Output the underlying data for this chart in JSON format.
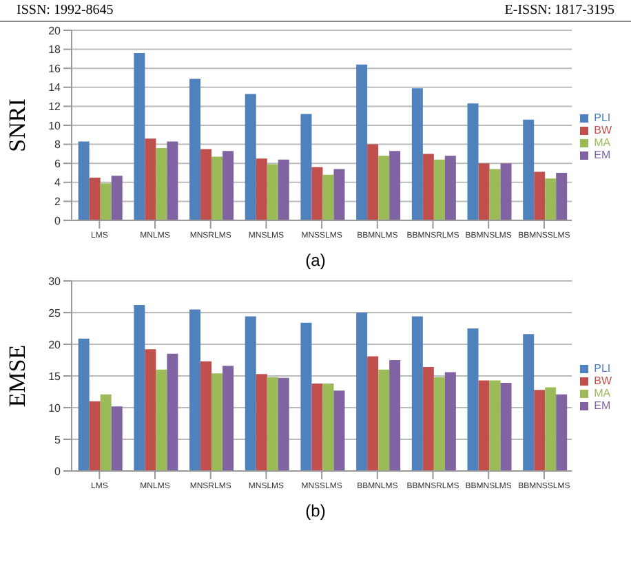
{
  "chart_data": [
    {
      "type": "bar",
      "ylabel": "SNRI",
      "annotations": [
        "ISSN: 1992-8645",
        "E-ISSN: 1817-3195",
        "(a)"
      ],
      "categories": [
        "LMS",
        "MNLMS",
        "MNSRLMS",
        "MNSLMS",
        "MNSSLMS",
        "BBMNLMS",
        "BBMNSRLMS",
        "BBMNSLMS",
        "BBMNSSLMS"
      ],
      "series": [
        {
          "name": "PLI",
          "color": "#4f81bd",
          "values": [
            8.3,
            17.6,
            14.9,
            13.3,
            11.2,
            16.4,
            13.9,
            12.3,
            10.6
          ]
        },
        {
          "name": "BW",
          "color": "#c0504d",
          "values": [
            4.5,
            8.6,
            7.5,
            6.5,
            5.6,
            8.0,
            7.0,
            6.0,
            5.1
          ]
        },
        {
          "name": "MA",
          "color": "#9bbb59",
          "values": [
            3.9,
            7.6,
            6.7,
            5.9,
            4.8,
            6.8,
            6.4,
            5.4,
            4.4
          ]
        },
        {
          "name": "EM",
          "color": "#8064a2",
          "values": [
            4.7,
            8.3,
            7.3,
            6.4,
            5.4,
            7.3,
            6.8,
            6.0,
            5.0
          ]
        }
      ],
      "ylim": [
        0,
        20
      ],
      "yticks": [
        0,
        2,
        4,
        6,
        8,
        10,
        12,
        14,
        16,
        18,
        20
      ],
      "grid": "y",
      "legend": "right"
    },
    {
      "type": "bar",
      "ylabel": "EMSE",
      "annotations": [
        "(b)"
      ],
      "categories": [
        "LMS",
        "MNLMS",
        "MNSRLMS",
        "MNSLMS",
        "MNSSLMS",
        "BBMNLMS",
        "BBMNSRLMS",
        "BBMNSLMS",
        "BBMNSSLMS"
      ],
      "series": [
        {
          "name": "PLI",
          "color": "#4f81bd",
          "values": [
            20.9,
            26.2,
            25.5,
            24.4,
            23.4,
            25.0,
            24.4,
            22.5,
            21.6
          ]
        },
        {
          "name": "BW",
          "color": "#c0504d",
          "values": [
            11.0,
            19.2,
            17.3,
            15.3,
            13.8,
            18.1,
            16.4,
            14.3,
            12.8
          ]
        },
        {
          "name": "MA",
          "color": "#9bbb59",
          "values": [
            12.1,
            16.0,
            15.4,
            14.8,
            13.8,
            16.0,
            14.8,
            14.3,
            13.2
          ]
        },
        {
          "name": "EM",
          "color": "#8064a2",
          "values": [
            10.2,
            18.5,
            16.6,
            14.7,
            12.7,
            17.5,
            15.6,
            13.9,
            12.1
          ]
        }
      ],
      "ylim": [
        0,
        30
      ],
      "yticks": [
        0,
        5,
        10,
        15,
        20,
        25,
        30
      ],
      "grid": "y",
      "legend": "right"
    }
  ]
}
